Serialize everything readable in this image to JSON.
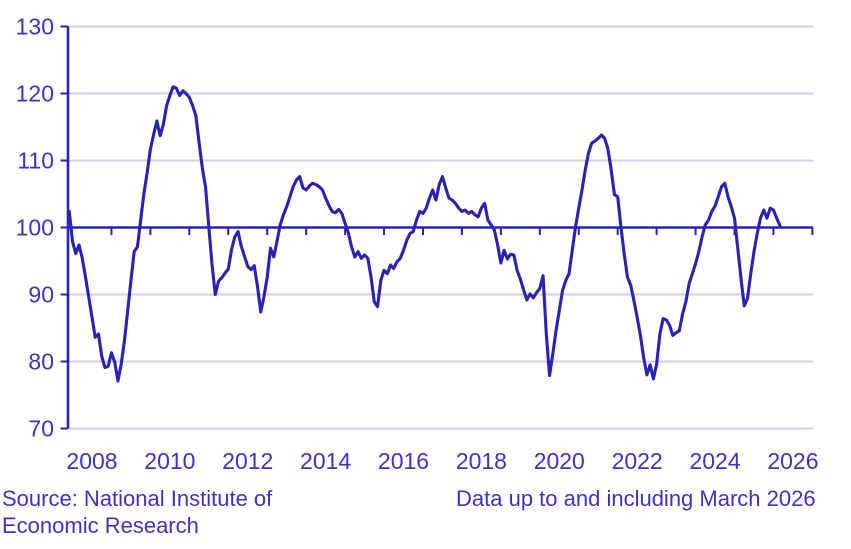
{
  "figure": {
    "source_note": "Source: National Institute of Economic Research",
    "data_note": "Data up to and including March 2026"
  },
  "chart_data": {
    "type": "line",
    "title": "",
    "xlabel": "",
    "ylabel": "",
    "ylim": [
      70,
      130
    ],
    "y_ticks": [
      70,
      80,
      90,
      100,
      110,
      120,
      130
    ],
    "x_tick_labels": [
      "2008",
      "2010",
      "2012",
      "2014",
      "2016",
      "2018",
      "2020",
      "2022",
      "2024",
      "2026"
    ],
    "x_year_tick_start": 2009,
    "x_year_tick_end": 2027,
    "baseline": 100,
    "grid": true,
    "legend": "none",
    "x_monthly_start": "2007-12",
    "x_monthly_end": "2026-03",
    "colors": {
      "line": "#2b21b2",
      "baseline_axis": "#2b21b2",
      "grid": "#cfcfea",
      "text": "#3c33c6",
      "background": "#ffffff"
    },
    "series": [
      {
        "values": [
          102.4,
          97.9,
          96.1,
          97.4,
          95.4,
          92.6,
          89.6,
          86.6,
          83.6,
          84.1,
          80.8,
          79.1,
          79.3,
          81.3,
          79.9,
          77.1,
          79.6,
          83.1,
          87.6,
          92.1,
          96.4,
          97.1,
          101.1,
          105.1,
          108.2,
          111.7,
          113.9,
          115.9,
          113.7,
          115.4,
          118.2,
          119.7,
          121.0,
          120.8,
          119.7,
          120.4,
          120.0,
          119.4,
          118.2,
          116.7,
          112.7,
          108.9,
          106.0,
          100.1,
          94.4,
          90.0,
          92.0,
          92.5,
          93.2,
          93.8,
          96.7,
          98.6,
          99.4,
          97.2,
          95.7,
          94.2,
          93.7,
          94.3,
          91.2,
          87.4,
          89.7,
          92.6,
          96.9,
          95.6,
          97.9,
          100.4,
          101.9,
          103.1,
          104.6,
          106.1,
          107.1,
          107.6,
          105.9,
          105.6,
          106.2,
          106.6,
          106.4,
          106.1,
          105.6,
          104.4,
          103.3,
          102.4,
          102.2,
          102.7,
          102.1,
          100.6,
          99.2,
          97.1,
          95.6,
          96.4,
          95.4,
          95.9,
          95.4,
          92.6,
          88.9,
          88.2,
          92.1,
          93.6,
          93.1,
          94.4,
          93.9,
          94.9,
          95.4,
          96.6,
          98.1,
          99.1,
          99.4,
          101.1,
          102.4,
          102.1,
          102.9,
          104.4,
          105.6,
          104.1,
          106.4,
          107.6,
          105.9,
          104.4,
          104.1,
          103.6,
          102.9,
          102.4,
          102.6,
          102.1,
          102.4,
          101.9,
          101.6,
          102.9,
          103.6,
          101.1,
          100.4,
          99.6,
          97.4,
          94.7,
          96.6,
          95.3,
          96.0,
          95.9,
          93.6,
          92.3,
          90.7,
          89.2,
          90.1,
          89.5,
          90.3,
          90.9,
          92.8,
          84.1,
          77.9,
          81.1,
          84.6,
          87.6,
          90.6,
          92.1,
          93.1,
          96.6,
          100.1,
          102.9,
          105.6,
          108.6,
          111.1,
          112.6,
          112.9,
          113.3,
          113.8,
          113.3,
          111.7,
          108.6,
          104.9,
          104.6,
          100.1,
          96.1,
          92.6,
          91.4,
          89.1,
          86.6,
          83.9,
          80.6,
          78.0,
          79.5,
          77.4,
          79.6,
          84.1,
          86.4,
          86.2,
          85.4,
          83.9,
          84.3,
          84.6,
          87.1,
          88.9,
          91.6,
          93.1,
          94.6,
          96.4,
          98.6,
          100.4,
          101.1,
          102.4,
          103.2,
          104.6,
          106.1,
          106.6,
          104.6,
          103.1,
          101.4,
          96.9,
          92.4,
          88.3,
          89.4,
          93.1,
          96.4,
          99.1,
          101.4,
          102.6,
          101.4,
          102.9,
          102.6,
          101.4,
          100.3
        ]
      }
    ]
  }
}
